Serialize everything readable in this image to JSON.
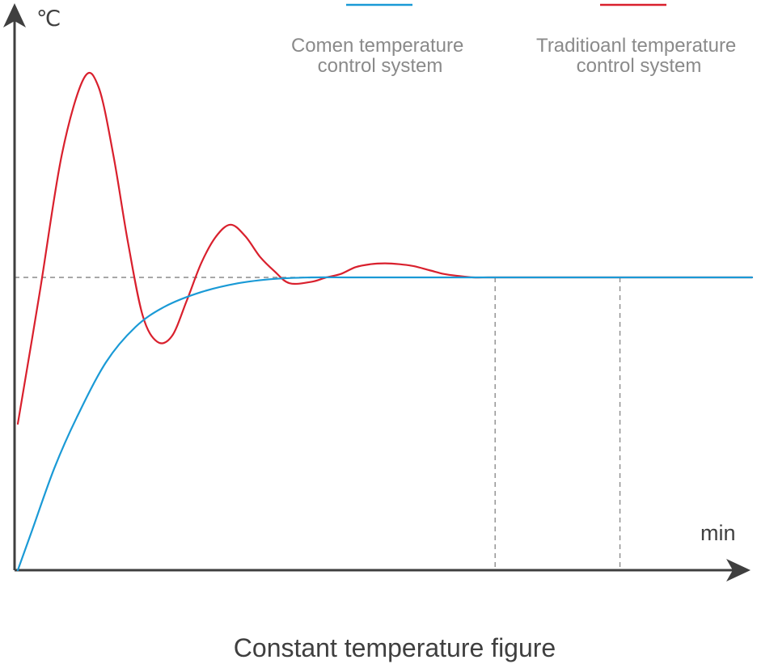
{
  "chart_data": {
    "type": "line",
    "title": "Constant temperature figure",
    "xlabel": "min",
    "ylabel": "℃",
    "x_tick_labels": false,
    "y_tick_labels": false,
    "grid": false,
    "legend_position": "top-right",
    "setpoint": 1.0,
    "guide_x": [
      65,
      82
    ],
    "xlim": [
      0,
      100
    ],
    "ylim": [
      0,
      2.0
    ],
    "series": [
      {
        "name": "Comen temperature control system",
        "color": "#1a9ad6",
        "x": [
          0,
          2,
          5,
          8,
          12,
          16,
          20,
          25,
          30,
          35,
          40,
          45,
          50,
          55,
          60,
          65,
          70,
          75,
          80,
          85,
          90,
          95,
          100
        ],
        "y": [
          0,
          0.14,
          0.35,
          0.52,
          0.71,
          0.83,
          0.9,
          0.95,
          0.98,
          0.995,
          1.0,
          1.0,
          1.0,
          1.0,
          1.0,
          1.0,
          1.0,
          1.0,
          1.0,
          1.0,
          1.0,
          1.0,
          1.0
        ]
      },
      {
        "name": "Traditioanl temperature control system",
        "color": "#d9202d",
        "x": [
          0,
          3,
          6,
          9,
          11,
          13,
          15,
          17,
          19,
          21,
          23,
          25,
          27,
          29,
          31,
          33,
          35,
          37,
          40,
          42,
          44,
          46,
          48,
          50,
          52,
          54,
          56,
          58,
          60,
          62,
          64,
          66,
          70,
          75,
          80,
          85,
          90,
          95,
          100
        ],
        "y": [
          0.5,
          0.95,
          1.42,
          1.68,
          1.65,
          1.42,
          1.12,
          0.87,
          0.78,
          0.8,
          0.92,
          1.05,
          1.14,
          1.18,
          1.14,
          1.07,
          1.02,
          0.98,
          0.985,
          1.0,
          1.012,
          1.035,
          1.045,
          1.048,
          1.045,
          1.038,
          1.025,
          1.012,
          1.005,
          1.0,
          1.0,
          1.0,
          1.0,
          1.0,
          1.0,
          1.0,
          1.0,
          1.0,
          1.0
        ]
      }
    ]
  }
}
